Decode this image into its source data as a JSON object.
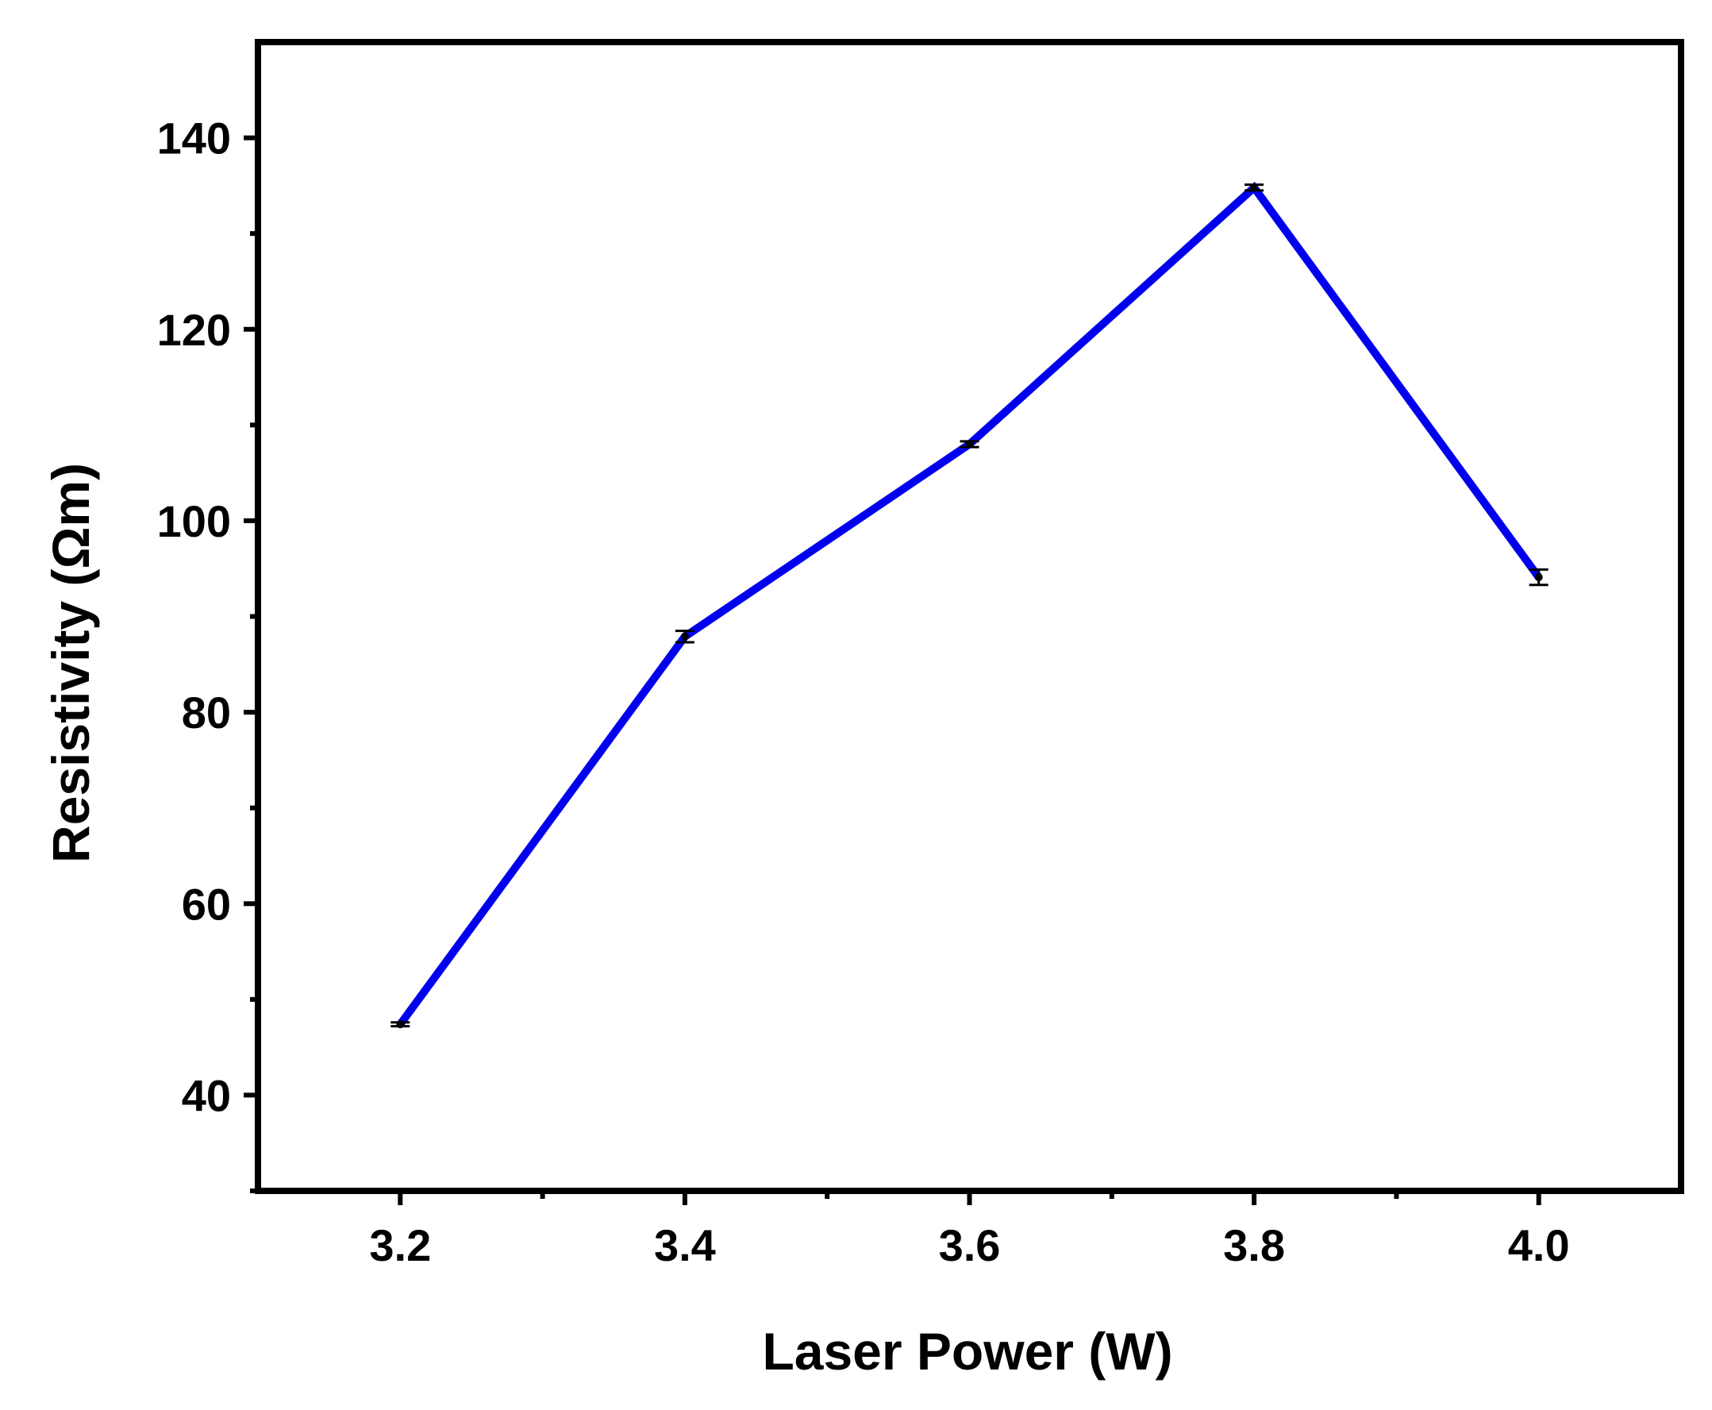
{
  "chart_data": {
    "type": "line",
    "title": "",
    "xlabel": "Laser Power (W)",
    "ylabel": "Resistivity (Ωm)",
    "xlim": [
      3.1,
      4.1
    ],
    "ylim": [
      30,
      150
    ],
    "x_ticks": [
      3.2,
      3.4,
      3.6,
      3.8,
      4.0
    ],
    "x_tick_labels": [
      "3.2",
      "3.4",
      "3.6",
      "3.8",
      "4.0"
    ],
    "y_ticks": [
      40,
      60,
      80,
      100,
      120,
      140
    ],
    "y_tick_labels": [
      "40",
      "60",
      "80",
      "100",
      "120",
      "140"
    ],
    "grid": false,
    "legend": "none",
    "series": [
      {
        "color": "#0000ee",
        "x": [
          3.2,
          3.4,
          3.6,
          3.8,
          4.0
        ],
        "y": [
          47.4,
          87.9,
          108.0,
          134.8,
          94.1
        ],
        "error": [
          0.2,
          0.6,
          0.3,
          0.3,
          0.8
        ]
      }
    ]
  }
}
